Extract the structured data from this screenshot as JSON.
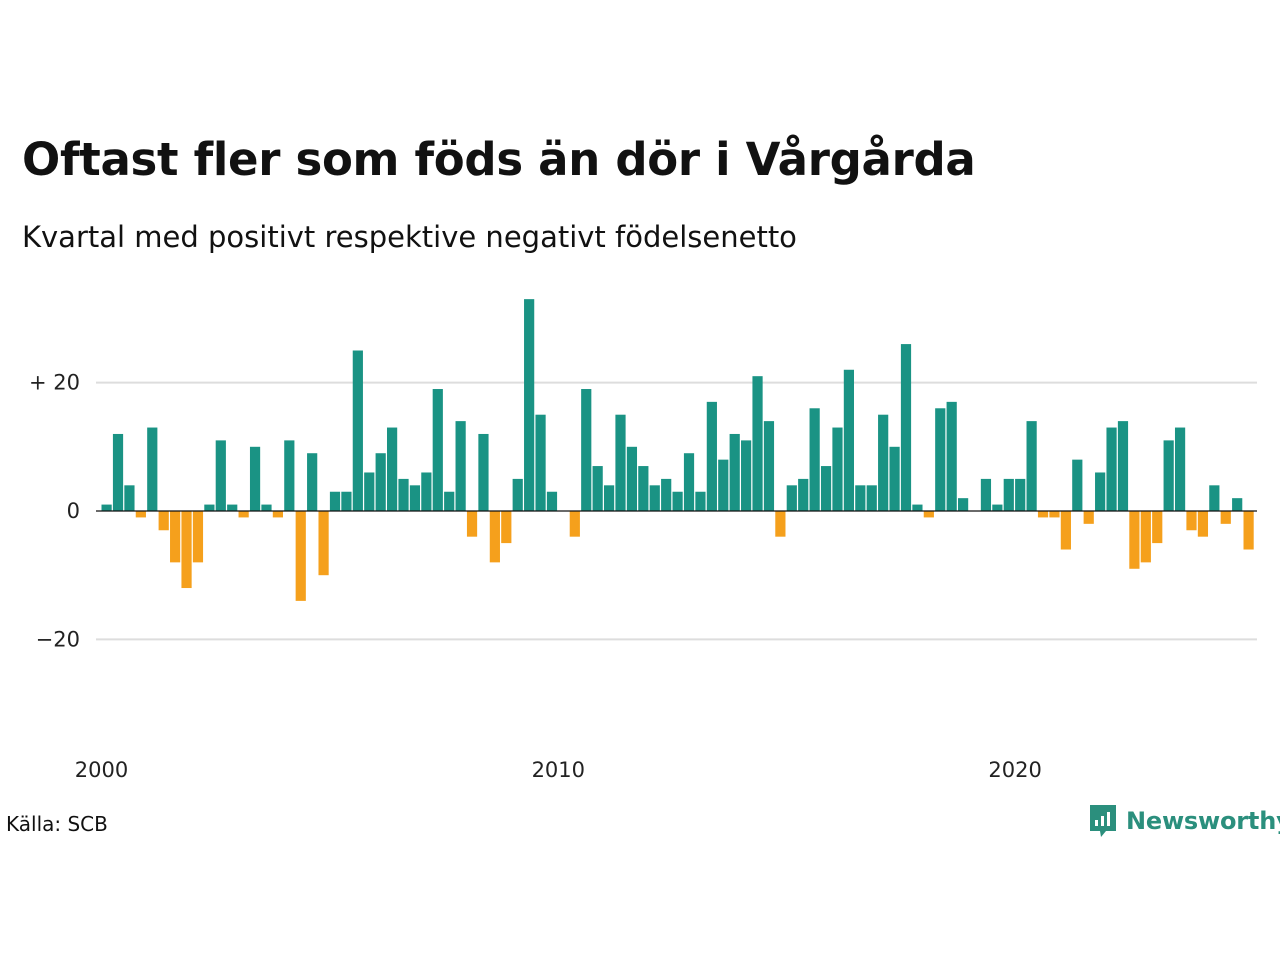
{
  "title": "Oftast fler som föds än dör i Vårgårda",
  "subtitle": "Kvartal med positivt respektive negativt födelsenetto",
  "source": "Källa: SCB",
  "brand": {
    "name": "Newsworthy",
    "icon": "newsworthy-logo-icon",
    "color": "#2b8f7d"
  },
  "colors": {
    "positive": "#1a9384",
    "negative": "#f5a01c",
    "grid": "#dddddd",
    "zero_line": "#111111"
  },
  "chart_data": {
    "type": "bar",
    "frequency": "quarterly",
    "start": "2000 Q1",
    "values": [
      1,
      12,
      4,
      -1,
      13,
      -3,
      -8,
      -12,
      -8,
      1,
      11,
      1,
      -1,
      10,
      1,
      -1,
      11,
      -14,
      9,
      -10,
      3,
      3,
      25,
      6,
      9,
      13,
      5,
      4,
      6,
      19,
      3,
      14,
      -4,
      12,
      -8,
      -5,
      5,
      33,
      15,
      3,
      0,
      -4,
      19,
      7,
      4,
      15,
      10,
      7,
      4,
      5,
      3,
      9,
      3,
      17,
      8,
      12,
      11,
      21,
      14,
      -4,
      4,
      5,
      16,
      7,
      13,
      22,
      4,
      4,
      15,
      10,
      26,
      1,
      -1,
      16,
      17,
      2,
      0,
      5,
      1,
      5,
      5,
      14,
      -1,
      -1,
      -6,
      8,
      -2,
      6,
      13,
      14,
      -9,
      -8,
      -5,
      11,
      13,
      -3,
      -4,
      4,
      -2,
      2,
      -6
    ],
    "ylim": [
      -36,
      37
    ],
    "y_ticks": [
      20,
      0,
      -20
    ],
    "y_tick_labels": [
      "+ 20",
      "0",
      "−20"
    ],
    "x_ticks": [
      2000,
      2010,
      2020
    ],
    "x_tick_labels": [
      "2000",
      "2010",
      "2020"
    ],
    "grid": true,
    "legend": "none"
  }
}
